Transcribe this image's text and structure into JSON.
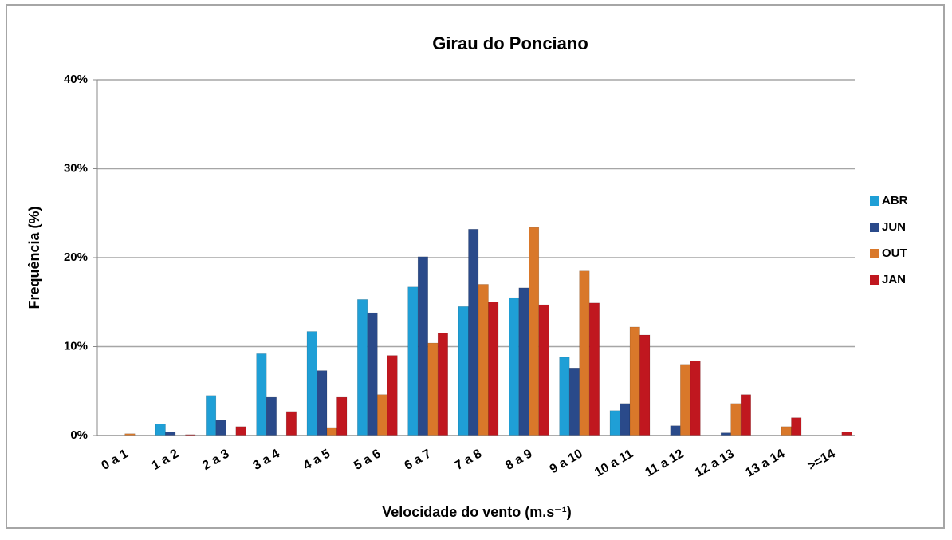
{
  "chart_data": {
    "type": "bar",
    "title": "Girau do Ponciano",
    "x_label": "Velocidade do vento (m.s⁻¹)",
    "y_label": "Frequência (%)",
    "categories": [
      "0 a 1",
      "1 a 2",
      "2 a 3",
      "3 a 4",
      "4 a 5",
      "5 a 6",
      "6 a 7",
      "7 a 8",
      "8 a 9",
      "9 a 10",
      "10 a 11",
      "11 a 12",
      "12 a 13",
      "13 a 14",
      ">=14"
    ],
    "series": [
      {
        "name": "ABR",
        "color": "#1f9fd6",
        "values": [
          0,
          1.3,
          4.5,
          9.2,
          11.7,
          15.3,
          16.7,
          14.5,
          15.5,
          8.8,
          2.8,
          0,
          0,
          0,
          0
        ]
      },
      {
        "name": "JUN",
        "color": "#2a4a8a",
        "values": [
          0,
          0.4,
          1.7,
          4.3,
          7.3,
          13.8,
          20.1,
          23.2,
          16.6,
          7.6,
          3.6,
          1.1,
          0.3,
          0,
          0
        ]
      },
      {
        "name": "OUT",
        "color": "#d9782a",
        "values": [
          0.2,
          0,
          0,
          0,
          0.9,
          4.6,
          10.4,
          17.0,
          23.4,
          18.5,
          12.2,
          8.0,
          3.6,
          1.0,
          0
        ]
      },
      {
        "name": "JAN",
        "color": "#c0171f",
        "values": [
          0,
          0.1,
          1.0,
          2.7,
          4.3,
          9.0,
          11.5,
          15.0,
          14.7,
          14.9,
          11.3,
          8.4,
          4.6,
          2.0,
          0.4
        ]
      }
    ],
    "ylim": [
      0,
      40
    ],
    "yticks": [
      {
        "value": 0,
        "label": "0%"
      },
      {
        "value": 10,
        "label": "10%"
      },
      {
        "value": 20,
        "label": "20%"
      },
      {
        "value": 30,
        "label": "30%"
      },
      {
        "value": 40,
        "label": "40%"
      }
    ],
    "grid": true,
    "legend": "right"
  }
}
